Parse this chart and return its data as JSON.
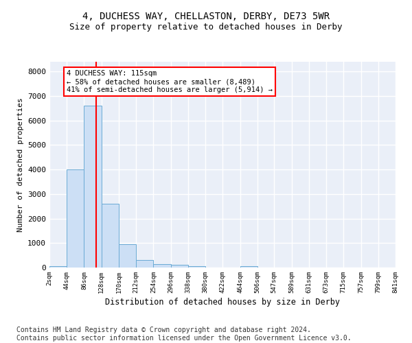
{
  "title1": "4, DUCHESS WAY, CHELLASTON, DERBY, DE73 5WR",
  "title2": "Size of property relative to detached houses in Derby",
  "xlabel": "Distribution of detached houses by size in Derby",
  "ylabel": "Number of detached properties",
  "bar_color": "#ccdff5",
  "bar_edge_color": "#6aaad4",
  "background_color": "#eaeff8",
  "grid_color": "white",
  "property_line_x": 115,
  "annotation_title": "4 DUCHESS WAY: 115sqm",
  "annotation_line1": "← 58% of detached houses are smaller (8,489)",
  "annotation_line2": "41% of semi-detached houses are larger (5,914) →",
  "bin_edges": [
    2,
    44,
    86,
    128,
    170,
    212,
    254,
    296,
    338,
    380,
    422,
    464,
    506,
    547,
    589,
    631,
    673,
    715,
    757,
    799,
    841
  ],
  "bin_heights": [
    60,
    4000,
    6600,
    2600,
    950,
    310,
    145,
    120,
    70,
    0,
    0,
    70,
    0,
    0,
    0,
    0,
    0,
    0,
    0,
    0
  ],
  "tick_labels": [
    "2sqm",
    "44sqm",
    "86sqm",
    "128sqm",
    "170sqm",
    "212sqm",
    "254sqm",
    "296sqm",
    "338sqm",
    "380sqm",
    "422sqm",
    "464sqm",
    "506sqm",
    "547sqm",
    "589sqm",
    "631sqm",
    "673sqm",
    "715sqm",
    "757sqm",
    "799sqm",
    "841sqm"
  ],
  "ylim": [
    0,
    8400
  ],
  "yticks": [
    0,
    1000,
    2000,
    3000,
    4000,
    5000,
    6000,
    7000,
    8000
  ],
  "footer": "Contains HM Land Registry data © Crown copyright and database right 2024.\nContains public sector information licensed under the Open Government Licence v3.0.",
  "footer_fontsize": 7.0,
  "title1_fontsize": 10,
  "title2_fontsize": 9
}
